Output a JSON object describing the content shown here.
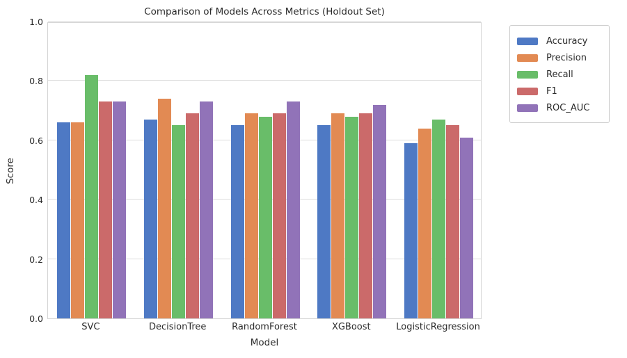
{
  "chart_data": {
    "type": "bar",
    "title": "Comparison of Models Across Metrics (Holdout Set)",
    "xlabel": "Model",
    "ylabel": "Score",
    "ylim": [
      0.0,
      1.0
    ],
    "yticks": [
      0.0,
      0.2,
      0.4,
      0.6,
      0.8,
      1.0
    ],
    "grid": true,
    "grid_color": "#dcdcdc",
    "background": "#ffffff",
    "legend_position": "outside-upper-right",
    "categories": [
      "SVC",
      "DecisionTree",
      "RandomForest",
      "XGBoost",
      "LogisticRegression"
    ],
    "series": [
      {
        "name": "Accuracy",
        "color": "#4e79c4",
        "values": [
          0.66,
          0.67,
          0.65,
          0.65,
          0.59
        ]
      },
      {
        "name": "Precision",
        "color": "#e28a53",
        "values": [
          0.66,
          0.74,
          0.69,
          0.69,
          0.64
        ]
      },
      {
        "name": "Recall",
        "color": "#69bd69",
        "values": [
          0.82,
          0.65,
          0.68,
          0.68,
          0.67
        ]
      },
      {
        "name": "F1",
        "color": "#cb6a6a",
        "values": [
          0.73,
          0.69,
          0.69,
          0.69,
          0.65
        ]
      },
      {
        "name": "ROC_AUC",
        "color": "#9173b8",
        "values": [
          0.73,
          0.73,
          0.73,
          0.72,
          0.61
        ]
      }
    ]
  }
}
